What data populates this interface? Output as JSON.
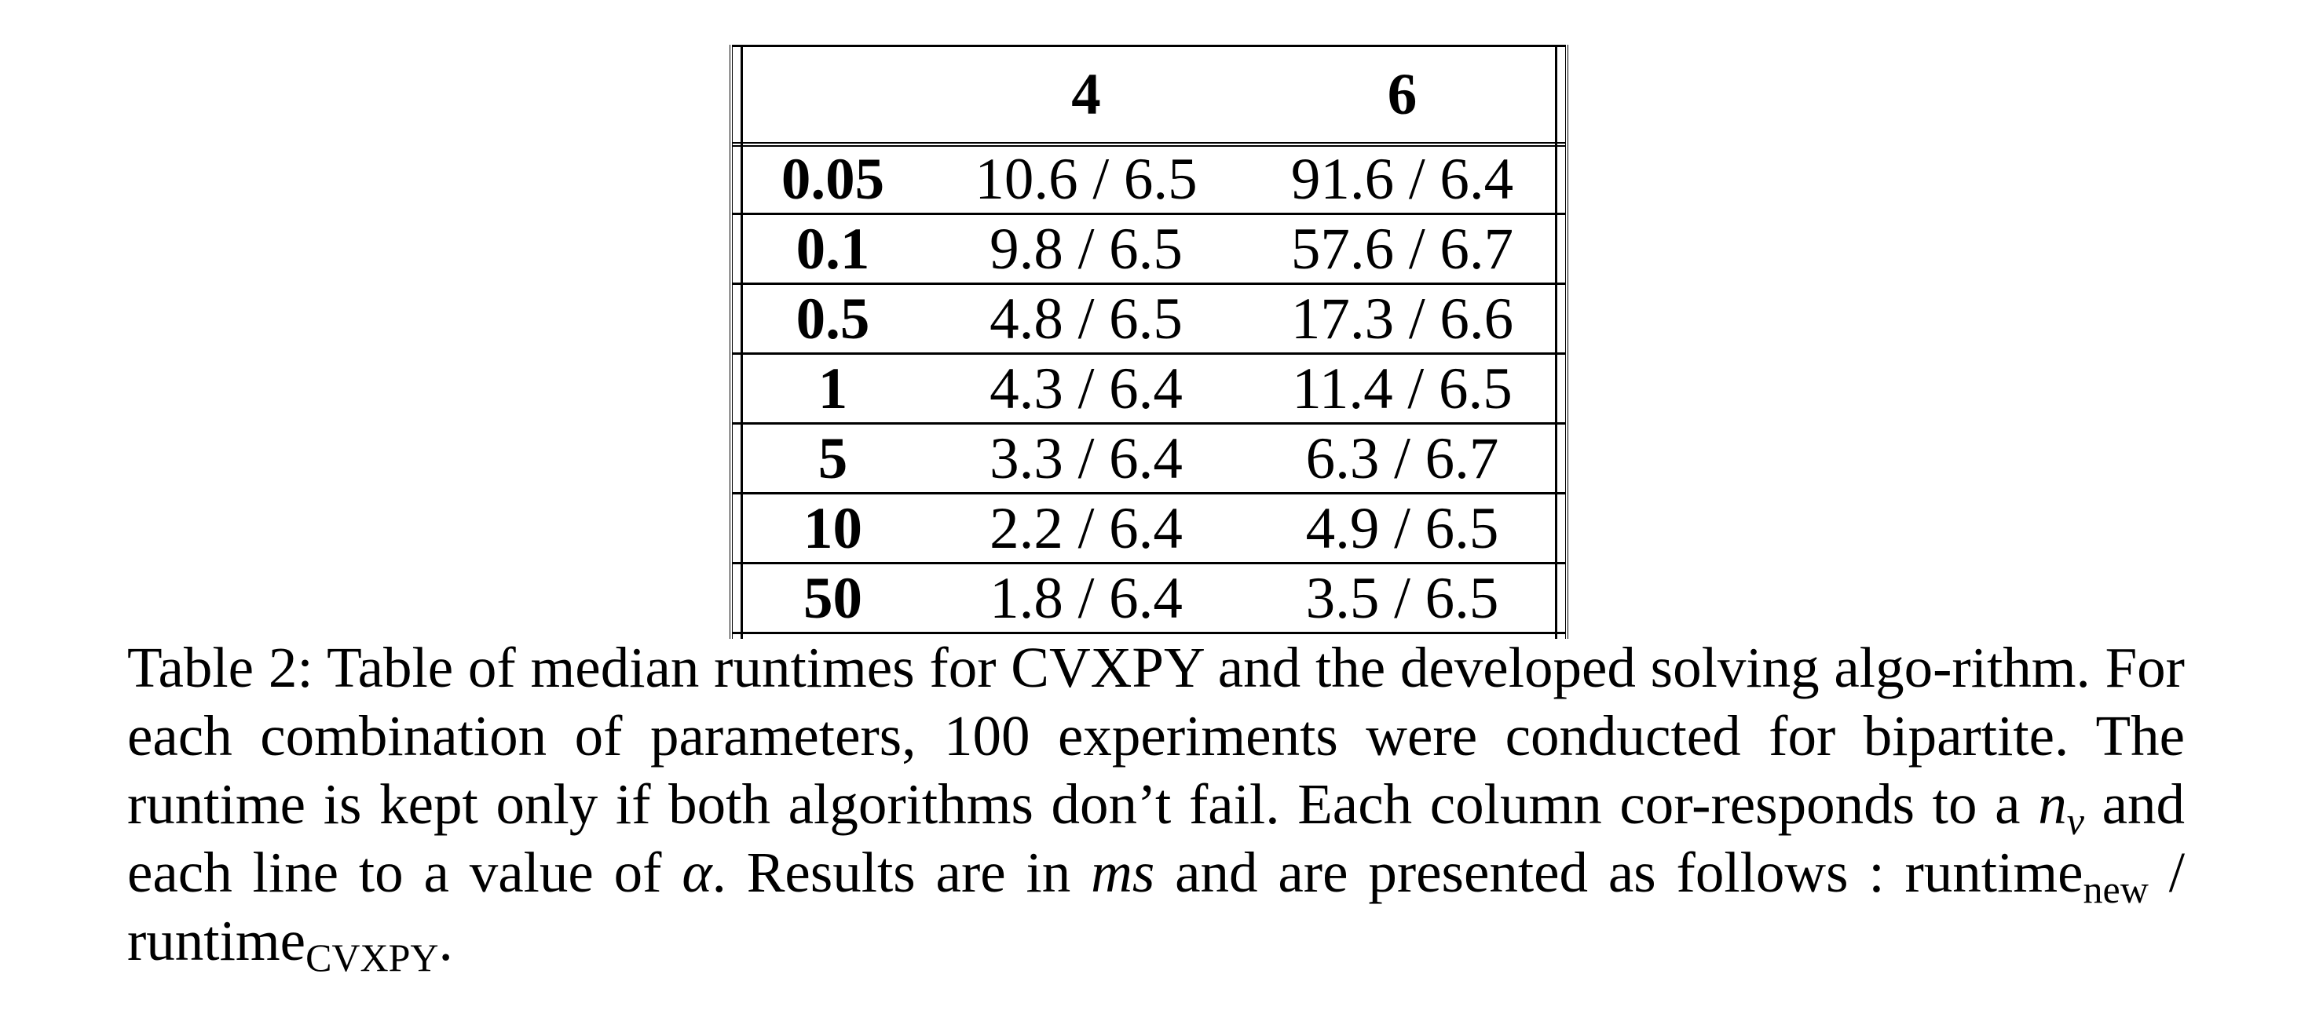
{
  "table": {
    "header": {
      "corner": "",
      "columns": [
        "4",
        "6"
      ]
    },
    "rows": [
      {
        "label": "0.05",
        "c4": "10.6 / 6.5",
        "c6": "91.6 / 6.4"
      },
      {
        "label": "0.1",
        "c4": "9.8 / 6.5",
        "c6": "57.6 / 6.7"
      },
      {
        "label": "0.5",
        "c4": "4.8 / 6.5",
        "c6": "17.3 / 6.6"
      },
      {
        "label": "1",
        "c4": "4.3 / 6.4",
        "c6": "11.4 / 6.5"
      },
      {
        "label": "5",
        "c4": "3.3 / 6.4",
        "c6": "6.3 / 6.7"
      },
      {
        "label": "10",
        "c4": "2.2 / 6.4",
        "c6": "4.9 / 6.5"
      },
      {
        "label": "50",
        "c4": "1.8 / 6.4",
        "c6": "3.5 / 6.5"
      }
    ]
  },
  "caption": {
    "part1": "Table 2: Table of median runtimes for CVXPY and the developed solving algo-rithm. For each combination of parameters, 100 experiments were conducted for bipartite. The runtime is kept only if both algorithms don’t fail. Each column cor-responds to a ",
    "nv_base": "n",
    "nv_sub": "v",
    "part2": " and each line to a value of ",
    "alpha": "α",
    "part3": ". Results are in ",
    "ms": "ms",
    "part4": " and are presented as follows : runtime",
    "sub_new": "new",
    "sep": " / runtime",
    "sub_cvxpy": "CVXPY",
    "end": "."
  }
}
